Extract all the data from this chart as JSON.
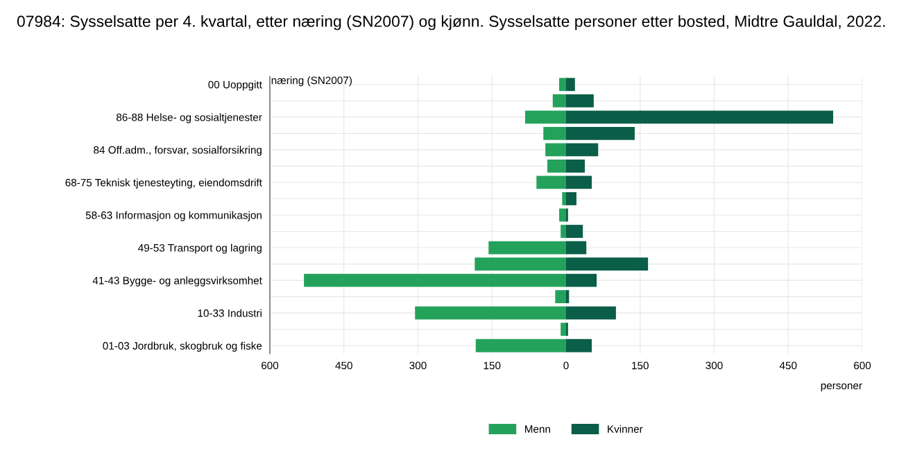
{
  "chart_data": {
    "type": "bar",
    "orientation": "horizontal",
    "title": "07984: Sysselsatte per 4. kvartal, etter næring (SN2007) og kjønn. Sysselsatte personer etter bosted, Midtre Gauldal, 2022.",
    "ylabel": "næring (SN2007)",
    "xlabel": "personer",
    "categories": [
      "00 Uoppgitt",
      null,
      "86-88 Helse- og sosialtjenester",
      null,
      "84 Off.adm., forsvar, sosialforsikring",
      null,
      "68-75 Teknisk tjenesteyting, eiendomsdrift",
      null,
      "58-63 Informasjon og kommunikasjon",
      null,
      "49-53 Transport og lagring",
      null,
      "41-43 Bygge- og anleggsvirksomhet",
      null,
      "10-33 Industri",
      null,
      "01-03 Jordbruk, skogbruk og fiske"
    ],
    "series": [
      {
        "name": "Menn",
        "color": "#24a25b",
        "values": [
          -14,
          -27,
          -83,
          -46,
          -42,
          -38,
          -60,
          -8,
          -14,
          -11,
          -157,
          -185,
          -531,
          -22,
          -306,
          -11,
          -183
        ]
      },
      {
        "name": "Kvinner",
        "color": "#0b5e48",
        "values": [
          18,
          56,
          541,
          139,
          65,
          38,
          52,
          21,
          4,
          34,
          41,
          166,
          62,
          6,
          101,
          4,
          52
        ]
      }
    ],
    "xlim": [
      -600,
      600
    ],
    "xticks": [
      {
        "value": -600,
        "label": "600"
      },
      {
        "value": -450,
        "label": "450"
      },
      {
        "value": -300,
        "label": "300"
      },
      {
        "value": -150,
        "label": "150"
      },
      0,
      150,
      300,
      450,
      600
    ],
    "grid": true,
    "legend": "bottom",
    "stacked": true
  }
}
